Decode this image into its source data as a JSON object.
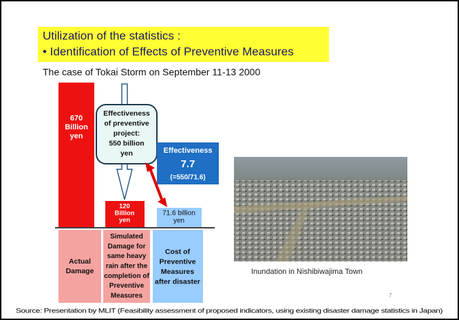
{
  "header": {
    "title": [
      "Utilization of the statistics :",
      "•  Identification of Effects of Preventive Measures"
    ],
    "subtitle": "The case of Tokai Storm on September 11-13 2000"
  },
  "diagram": {
    "actual_bar": [
      "670",
      "Billion",
      "yen"
    ],
    "effectiveness_box": [
      "Effectiveness",
      "of preventive",
      "project:",
      "550 billion",
      "yen"
    ],
    "simulated_bar": [
      "120",
      "Billion",
      "yen"
    ],
    "cost_bar": [
      "71.6 billion",
      "yen"
    ],
    "ratio_box": [
      "Effectiveness",
      "7.7",
      "(=550/71.6)"
    ],
    "labels": [
      [
        "Actual",
        "Damage"
      ],
      [
        "Simulated",
        "Damage for",
        "same heavy",
        "rain after the",
        "completion of",
        "Preventive",
        "Measures"
      ],
      [
        "Cost of",
        "Preventive",
        "Measures",
        "after disaster"
      ]
    ]
  },
  "photo_caption": "Inundation in Nishibiwajima Town",
  "page_number": "7",
  "source": "Source: Presentation by MLIT (Feasibility assessment of proposed indicators, using existing disaster damage statistics in Japan)"
}
